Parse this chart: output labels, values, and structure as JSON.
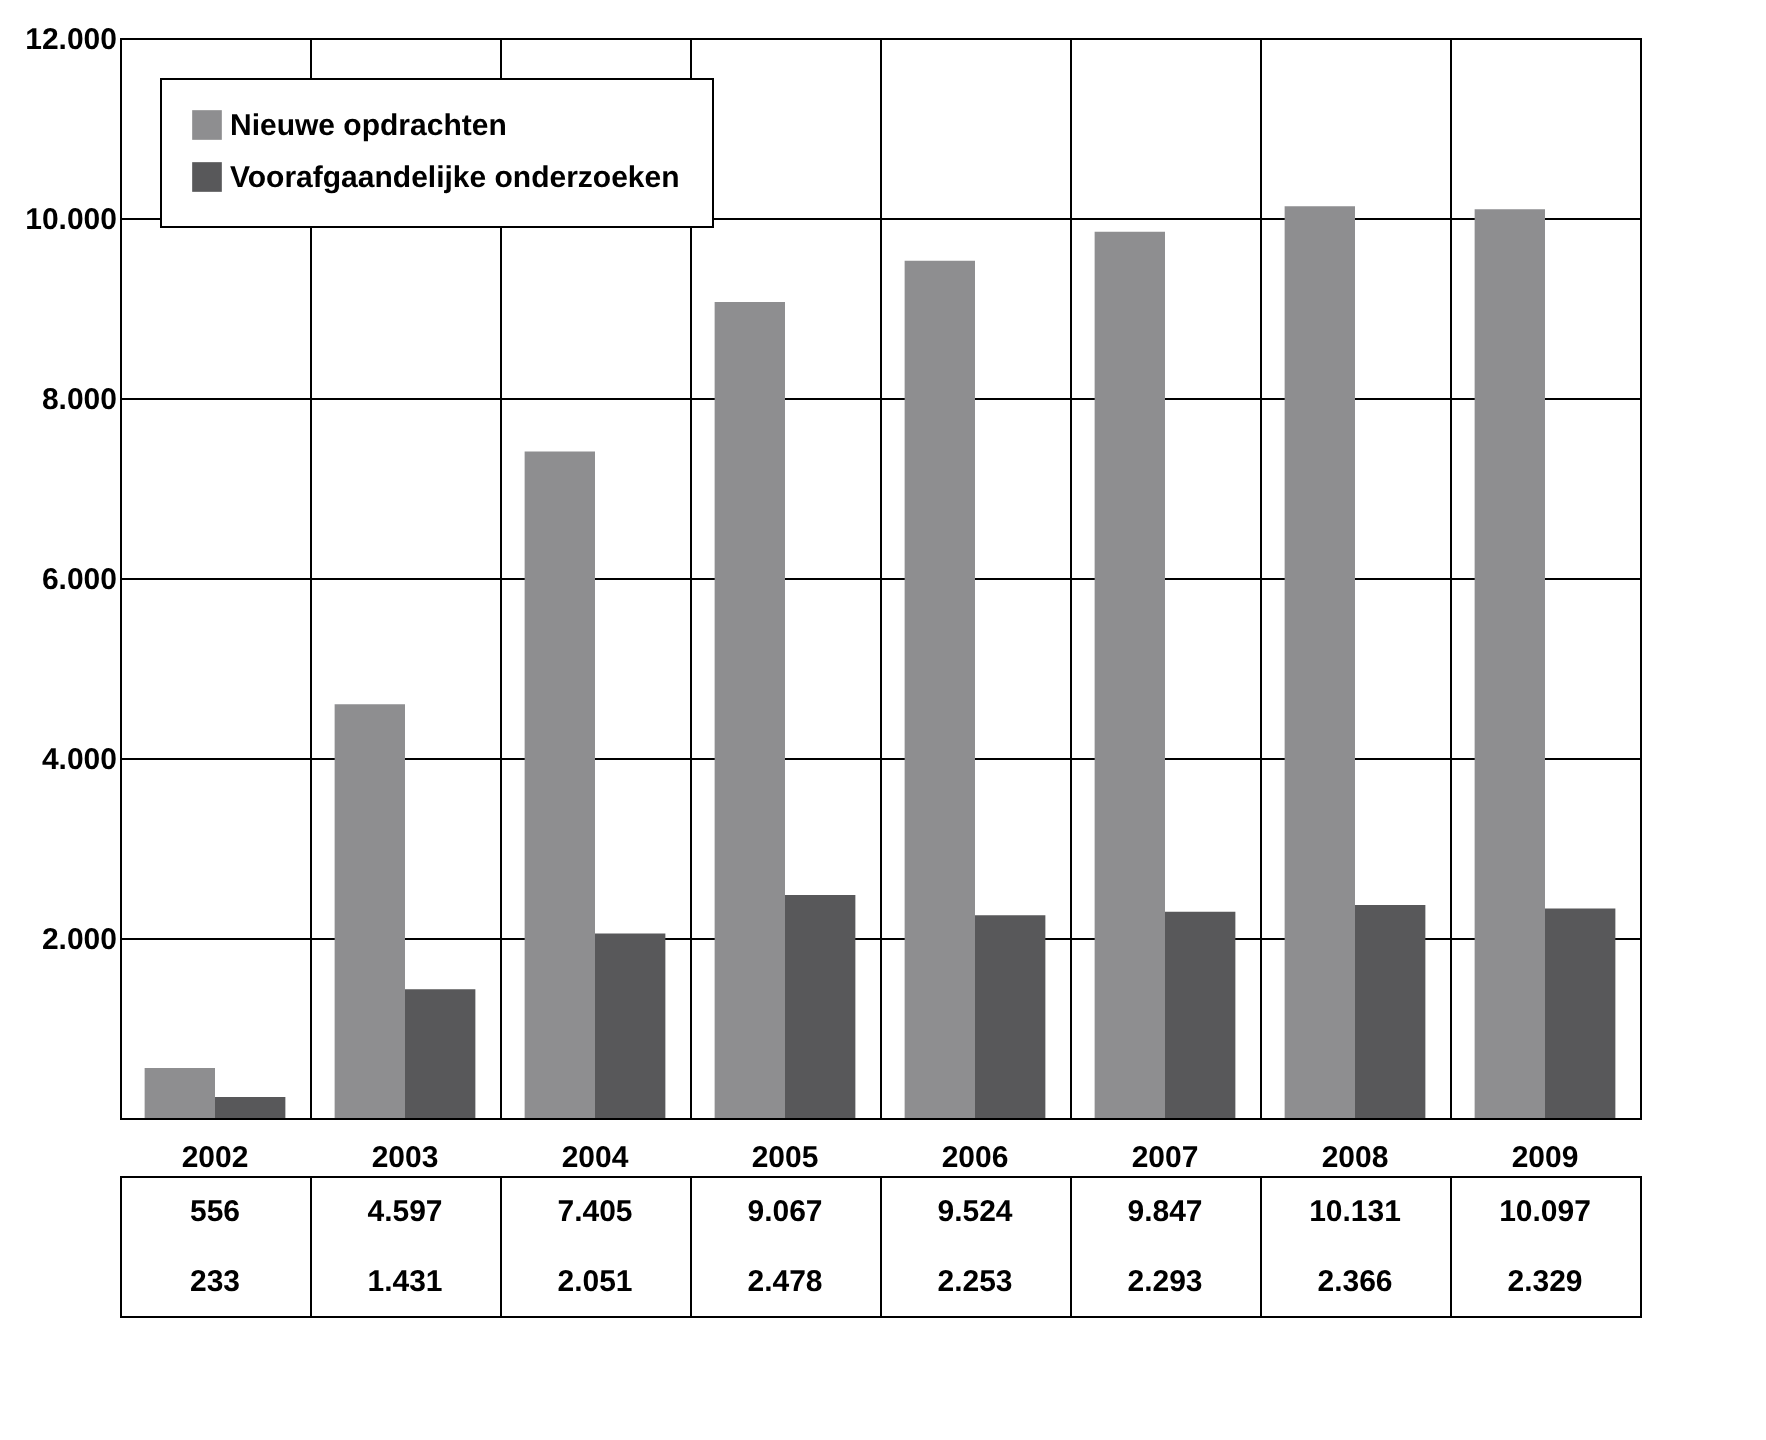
{
  "chart_data": {
    "type": "bar",
    "categories": [
      "2002",
      "2003",
      "2004",
      "2005",
      "2006",
      "2007",
      "2008",
      "2009"
    ],
    "series": [
      {
        "name": "Nieuwe opdrachten",
        "color": "#8e8e90",
        "values": [
          556,
          4597,
          7405,
          9067,
          9524,
          9847,
          10131,
          10097
        ],
        "value_labels": [
          "556",
          "4.597",
          "7.405",
          "9.067",
          "9.524",
          "9.847",
          "10.131",
          "10.097"
        ]
      },
      {
        "name": "Voorafgaandelijke onderzoeken",
        "color": "#58585a",
        "values": [
          233,
          1431,
          2051,
          2478,
          2253,
          2293,
          2366,
          2329
        ],
        "value_labels": [
          "233",
          "1.431",
          "2.051",
          "2.478",
          "2.253",
          "2.293",
          "2.366",
          "2.329"
        ]
      }
    ],
    "ylim": [
      0,
      12000
    ],
    "yticks": [
      {
        "value": 0,
        "label": null
      },
      {
        "value": 2000,
        "label": "2.000"
      },
      {
        "value": 4000,
        "label": "4.000"
      },
      {
        "value": 6000,
        "label": "6.000"
      },
      {
        "value": 8000,
        "label": "8.000"
      },
      {
        "value": 10000,
        "label": "10.000"
      },
      {
        "value": 12000,
        "label": "12.000"
      }
    ],
    "grid": true,
    "legend": "top left"
  }
}
